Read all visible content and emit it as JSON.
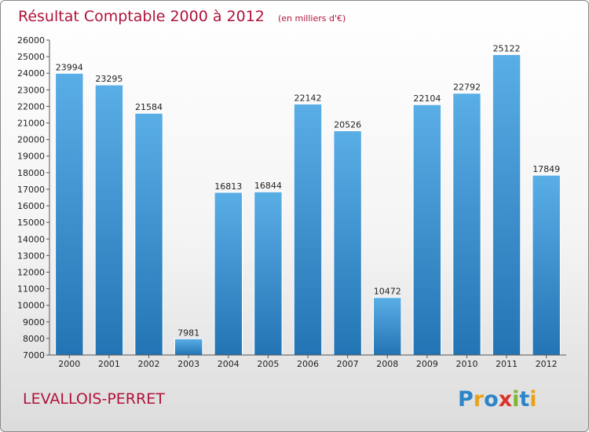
{
  "chart_data": {
    "type": "bar",
    "title": "Résultat Comptable 2000 à 2012",
    "subtitle": "(en milliers d'€)",
    "categories": [
      "2000",
      "2001",
      "2002",
      "2003",
      "2004",
      "2005",
      "2006",
      "2007",
      "2008",
      "2009",
      "2010",
      "2011",
      "2012"
    ],
    "values": [
      23994,
      23295,
      21584,
      7981,
      16813,
      16844,
      22142,
      20526,
      10472,
      22104,
      22792,
      25122,
      17849
    ],
    "ylim": [
      7000,
      26000
    ],
    "ytick_step": 1000,
    "xlabel": "",
    "ylabel": "",
    "grid": false,
    "bar_color_top": "#5aaee6",
    "bar_color_bottom": "#2374b4"
  },
  "footer": {
    "city": "LEVALLOIS-PERRET",
    "brand": "Proxiti"
  },
  "colors": {
    "title": "#b0133a",
    "brand_letters": [
      "#2a86c8",
      "#e8a21a",
      "#2a86c8",
      "#d8332b",
      "#7fb532",
      "#2a86c8",
      "#e8a21a"
    ]
  }
}
